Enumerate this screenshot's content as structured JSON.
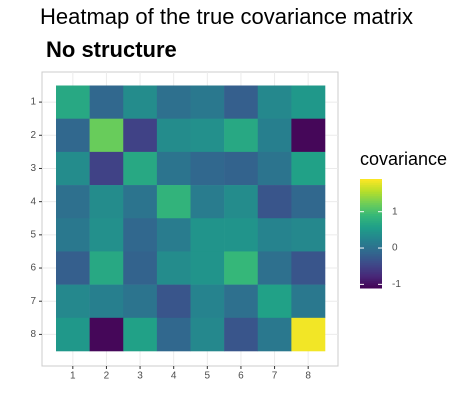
{
  "chart_data": {
    "type": "heatmap",
    "title": "Heatmap of the true covariance matrix",
    "subtitle": "No structure",
    "x": [
      "1",
      "2",
      "3",
      "4",
      "5",
      "6",
      "7",
      "8"
    ],
    "y": [
      "1",
      "2",
      "3",
      "4",
      "5",
      "6",
      "7",
      "8"
    ],
    "values": [
      [
        0.7,
        -0.1,
        0.35,
        0.0,
        0.1,
        -0.2,
        0.3,
        0.5
      ],
      [
        -0.1,
        1.2,
        -0.5,
        0.35,
        0.4,
        0.7,
        0.2,
        -1.05
      ],
      [
        0.35,
        -0.5,
        0.7,
        0.05,
        -0.1,
        -0.15,
        0.05,
        0.6
      ],
      [
        0.0,
        0.35,
        0.05,
        0.85,
        0.15,
        0.35,
        -0.3,
        -0.1
      ],
      [
        0.1,
        0.4,
        -0.1,
        0.15,
        0.45,
        0.45,
        0.25,
        0.3
      ],
      [
        -0.2,
        0.7,
        -0.15,
        0.35,
        0.45,
        0.9,
        0.0,
        -0.3
      ],
      [
        0.3,
        0.2,
        0.05,
        -0.3,
        0.25,
        0.0,
        0.6,
        0.1
      ],
      [
        0.5,
        -1.05,
        0.6,
        -0.1,
        0.3,
        -0.3,
        0.1,
        1.85
      ]
    ],
    "colorscale": [
      "#440154",
      "#482878",
      "#3e4989",
      "#31688e",
      "#26828e",
      "#1f9e89",
      "#35b779",
      "#6ece58",
      "#b5de2b",
      "#fde725"
    ],
    "legend_title": "covariance",
    "clim": [
      -1.1,
      1.9
    ],
    "cticks": [
      -1,
      0,
      1
    ],
    "grid": true
  }
}
